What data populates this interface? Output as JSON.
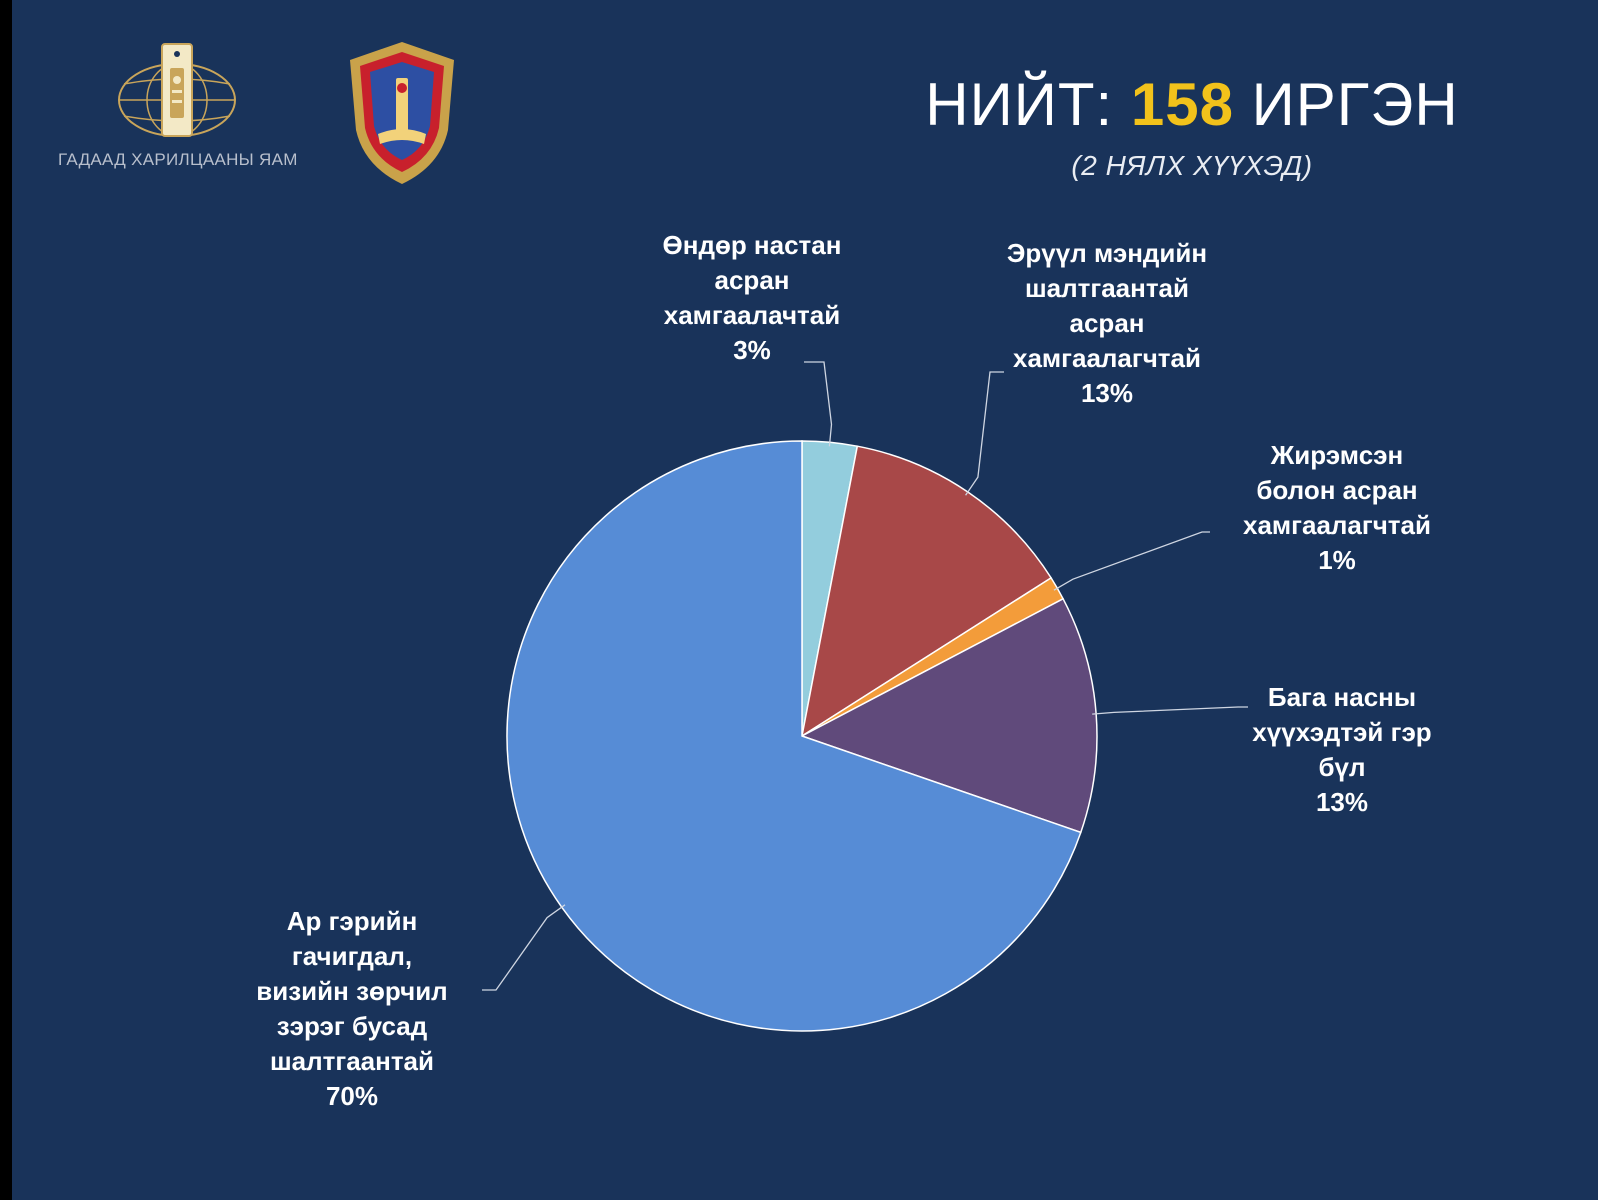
{
  "header": {
    "ministry_name": "ГАДААД ХАРИЛЦААНЫ ЯАМ",
    "title_prefix": "НИЙТ: ",
    "title_total": "158",
    "title_suffix": " ИРГЭН",
    "subtitle": "(2 НЯЛХ ХҮҮХЭД)"
  },
  "logos": {
    "ministry": "ministry-of-foreign-affairs-emblem",
    "commission": "emergency-commission-crest"
  },
  "colors": {
    "background": "#19335a",
    "accent": "#f2c21b"
  },
  "chart_data": {
    "type": "pie",
    "slices": [
      {
        "label": "Өндөр настан асран хамгаалачтай",
        "lines": "Өндөр настан\nасран\nхамгаалачтай\n3%",
        "value": 3,
        "color": "#93cddd"
      },
      {
        "label": "Эрүүл мэндийн шалтгаантай асран хамгаалагчтай",
        "lines": "Эрүүл мэндийн\nшалтгаантай\nасран\nхамгаалагчтай\n13%",
        "value": 13,
        "color": "#a84848"
      },
      {
        "label": "Жирэмсэн болон асран хамгаалагчтай",
        "lines": "Жирэмсэн\nболон асран\nхамгаалагчтай\n1%",
        "value": 1.3,
        "color": "#f39c3a"
      },
      {
        "label": "Бага насны хүүхэдтэй гэр бүл",
        "lines": "Бага насны\nхүүхэдтэй гэр\nбүл\n13%",
        "value": 13,
        "color": "#604a7b"
      },
      {
        "label": "Ар гэрийн гачигдал, визийн зөрчил зэрэг бусад шалтгаантай",
        "lines": "Ар гэрийн\nгачигдал,\nвизийн зөрчил\nзэрэг бусад\nшалтгаантай\n70%",
        "value": 69.7,
        "color": "#568cd6"
      }
    ]
  }
}
